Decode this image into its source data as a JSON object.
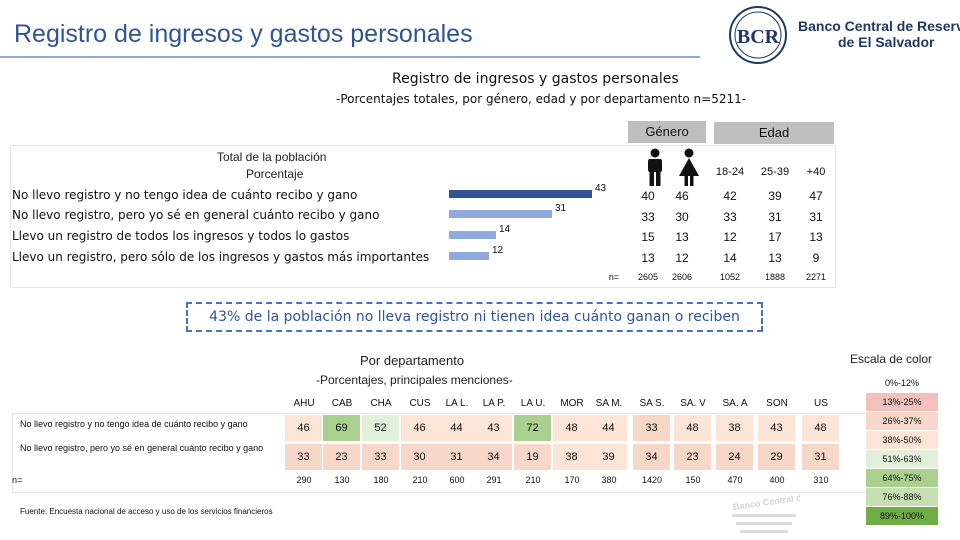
{
  "header": {
    "title": "Registro de ingresos y gastos personales",
    "logo_line1": "Banco Central de Reserva",
    "logo_line2": "de El Salvador",
    "logo_mark": "BCR"
  },
  "subtitle1": "Registro de ingresos y gastos personales",
  "subtitle2": "-Porcentajes totales, por género, edad y por departamento n=5211-",
  "highlight": "43% de la población no lleva registro ni tienen idea cuánto ganan o reciben",
  "source": "Fuente: Encuesta nacional de acceso y uso de los servicios financieros",
  "watermark_text": "Banco Central de Reserva",
  "colors": {
    "dark_bar": "#2f5597",
    "light_bar": "#8faadc",
    "green": "#a9d08e",
    "light_green": "#e2efda",
    "orange": "#fce4d6"
  },
  "chart_data": [
    {
      "type": "bar",
      "title": "Total de la población",
      "subtitle": "Porcentaje",
      "categories": [
        "No llevo registro y no tengo idea de cuánto recibo y gano",
        "No llevo registro, pero yo sé en general cuánto recibo y gano",
        "Llevo un registro de todos los ingresos y todos lo gastos",
        "Llevo un registro, pero sólo de los ingresos y gastos más importantes"
      ],
      "values": [
        43,
        31,
        14,
        12
      ],
      "xlim": [
        0,
        45
      ]
    },
    {
      "type": "table",
      "title": "Género / Edad",
      "group_headers": [
        "Género",
        "Edad"
      ],
      "columns": [
        "Hombre",
        "Mujer",
        "18-24",
        "25-39",
        "+40"
      ],
      "column_labels": [
        "",
        "",
        "18-24",
        "25-39",
        "+40"
      ],
      "column_icons": [
        "male-icon",
        "female-icon",
        "",
        "",
        ""
      ],
      "rows": [
        [
          40,
          46,
          42,
          39,
          47
        ],
        [
          33,
          30,
          33,
          31,
          31
        ],
        [
          15,
          13,
          12,
          17,
          13
        ],
        [
          13,
          12,
          14,
          13,
          9
        ]
      ],
      "n_label": "n=",
      "n": [
        "2605",
        "2606",
        "1052",
        "1888",
        "2271"
      ]
    },
    {
      "type": "table",
      "title": "Por departamento",
      "subtitle": "-Porcentajes, principales menciones-",
      "columns": [
        "AHU",
        "CAB",
        "CHA",
        "CUS",
        "LA L.",
        "LA P.",
        "LA U.",
        "MOR",
        "SA M.",
        "SA S.",
        "SA. V",
        "SA. A",
        "SON",
        "US"
      ],
      "row_labels": [
        "No llevo registro y no tengo idea de cuánto recibo y gano",
        "No llevo registro, pero yo sé en general cuánto recibo y gano"
      ],
      "rows": [
        [
          46,
          69,
          52,
          46,
          44,
          43,
          72,
          48,
          44,
          33,
          48,
          38,
          43,
          48
        ],
        [
          33,
          23,
          33,
          30,
          31,
          34,
          19,
          38,
          39,
          34,
          23,
          24,
          29,
          31
        ]
      ],
      "n_label": "n=",
      "n": [
        "290",
        "130",
        "180",
        "210",
        "600",
        "291",
        "210",
        "170",
        "380",
        "1420",
        "150",
        "470",
        "400",
        "310"
      ]
    }
  ],
  "scale": {
    "title": "Escala de color",
    "items": [
      {
        "label": "0%-12%",
        "color": "#ffffff"
      },
      {
        "label": "13%-25%",
        "color": "#f2c1be"
      },
      {
        "label": "26%-37%",
        "color": "#f6d7c8"
      },
      {
        "label": "38%-50%",
        "color": "#fce4d6"
      },
      {
        "label": "51%-63%",
        "color": "#e2efda"
      },
      {
        "label": "64%-75%",
        "color": "#a9d08e"
      },
      {
        "label": "76%-88%",
        "color": "#c6e0b4"
      },
      {
        "label": "89%-100%",
        "color": "#70ad47"
      }
    ]
  }
}
